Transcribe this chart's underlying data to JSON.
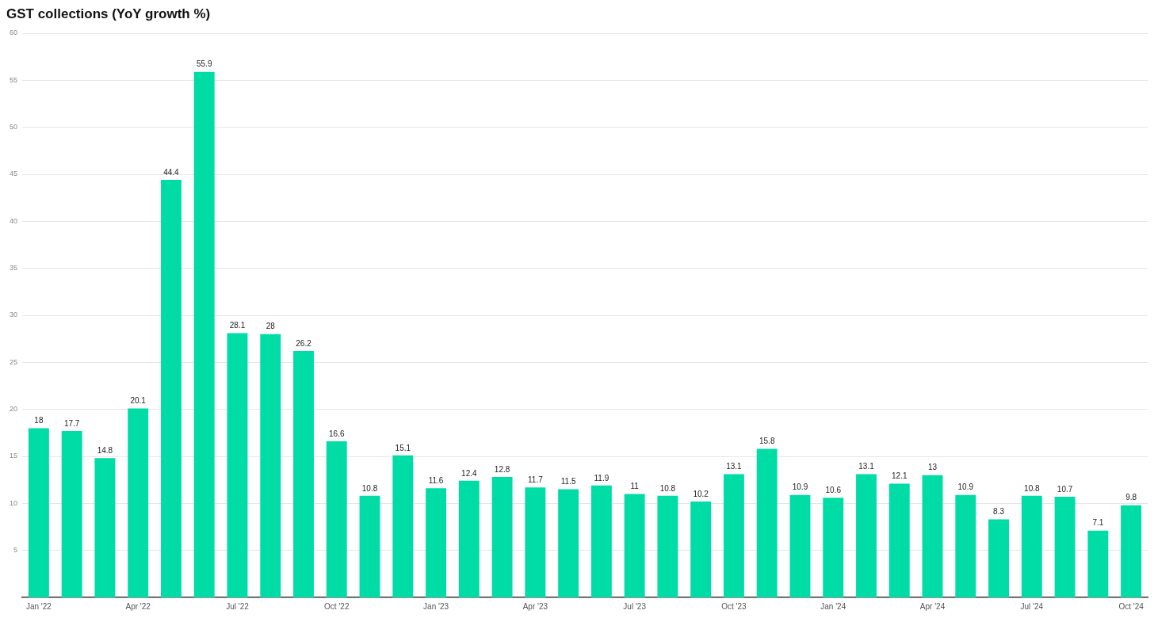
{
  "chart_data": {
    "type": "bar",
    "title": "GST collections (YoY growth %)",
    "categories": [
      "Jan '22",
      null,
      null,
      "Apr '22",
      null,
      null,
      "Jul '22",
      null,
      null,
      "Oct '22",
      null,
      null,
      "Jan '23",
      null,
      null,
      "Apr '23",
      null,
      null,
      "Jul '23",
      null,
      null,
      "Oct '23",
      null,
      null,
      "Jan '24",
      null,
      null,
      "Apr '24",
      null,
      null,
      "Jul '24",
      null,
      null,
      "Oct '24"
    ],
    "values": [
      18,
      17.7,
      14.8,
      20.1,
      44.4,
      55.9,
      28.1,
      28,
      26.2,
      16.6,
      10.8,
      15.1,
      11.6,
      12.4,
      12.8,
      11.7,
      11.5,
      11.9,
      11,
      10.8,
      10.2,
      13.1,
      15.8,
      10.9,
      10.6,
      13.1,
      12.1,
      13,
      10.9,
      8.3,
      10.8,
      10.7,
      7.1,
      9.8
    ],
    "color": "#00dca6",
    "ylim": [
      0,
      60
    ],
    "yticks": [
      5,
      10,
      15,
      20,
      25,
      30,
      35,
      40,
      45,
      50,
      55,
      60
    ],
    "grid": "y",
    "data_labels": true
  }
}
